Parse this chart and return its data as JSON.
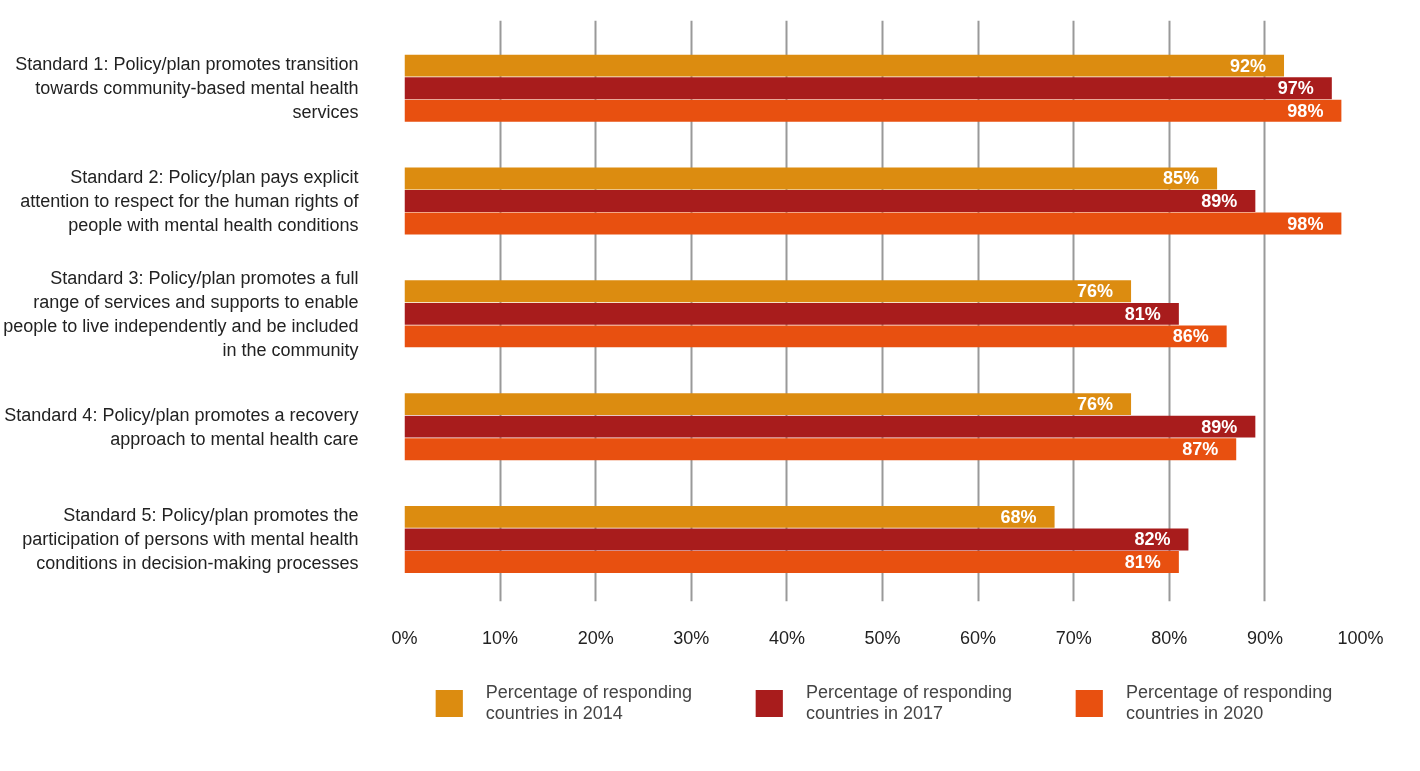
{
  "chart_data": {
    "type": "bar",
    "orientation": "horizontal",
    "categories": [
      "Standard 1: Policy/plan promotes transition towards community-based mental health services",
      "Standard 2: Policy/plan pays explicit attention to respect for the human rights of people with mental health conditions",
      "Standard 3: Policy/plan promotes a full range of services and supports to enable people to live independently and be included in the community",
      "Standard 4: Policy/plan promotes a recovery approach to mental health care",
      "Standard 5: Policy/plan promotes the participation of persons with mental health conditions in decision-making processes"
    ],
    "series": [
      {
        "name": "Percentage of responding countries in 2014",
        "color": "#dc8c10",
        "values": [
          92,
          85,
          76,
          76,
          68
        ],
        "value_labels": [
          "92%",
          "85%",
          "76%",
          "76%",
          "68%"
        ]
      },
      {
        "name": "Percentage of responding countries in 2017",
        "color": "#a81c1c",
        "values": [
          97,
          89,
          81,
          89,
          82
        ],
        "value_labels": [
          "97%",
          "89%",
          "81%",
          "89%",
          "82%"
        ]
      },
      {
        "name": "Percentage of responding countries in 2020",
        "color": "#e85010",
        "values": [
          98,
          98,
          86,
          87,
          81
        ],
        "value_labels": [
          "98%",
          "98%",
          "86%",
          "87%",
          "81%"
        ]
      }
    ],
    "xlim": [
      0,
      100
    ],
    "xticks": [
      {
        "value": 0,
        "label": "0%"
      },
      {
        "value": 10,
        "label": "10%"
      },
      {
        "value": 20,
        "label": "20%"
      },
      {
        "value": 30,
        "label": "30%"
      },
      {
        "value": 40,
        "label": "40%"
      },
      {
        "value": 50,
        "label": "50%"
      },
      {
        "value": 60,
        "label": "60%"
      },
      {
        "value": 70,
        "label": "70%"
      },
      {
        "value": 80,
        "label": "80%"
      },
      {
        "value": 90,
        "label": "90%"
      },
      {
        "value": 100,
        "label": "100%"
      }
    ],
    "grid": "x",
    "legend": "bottom"
  }
}
